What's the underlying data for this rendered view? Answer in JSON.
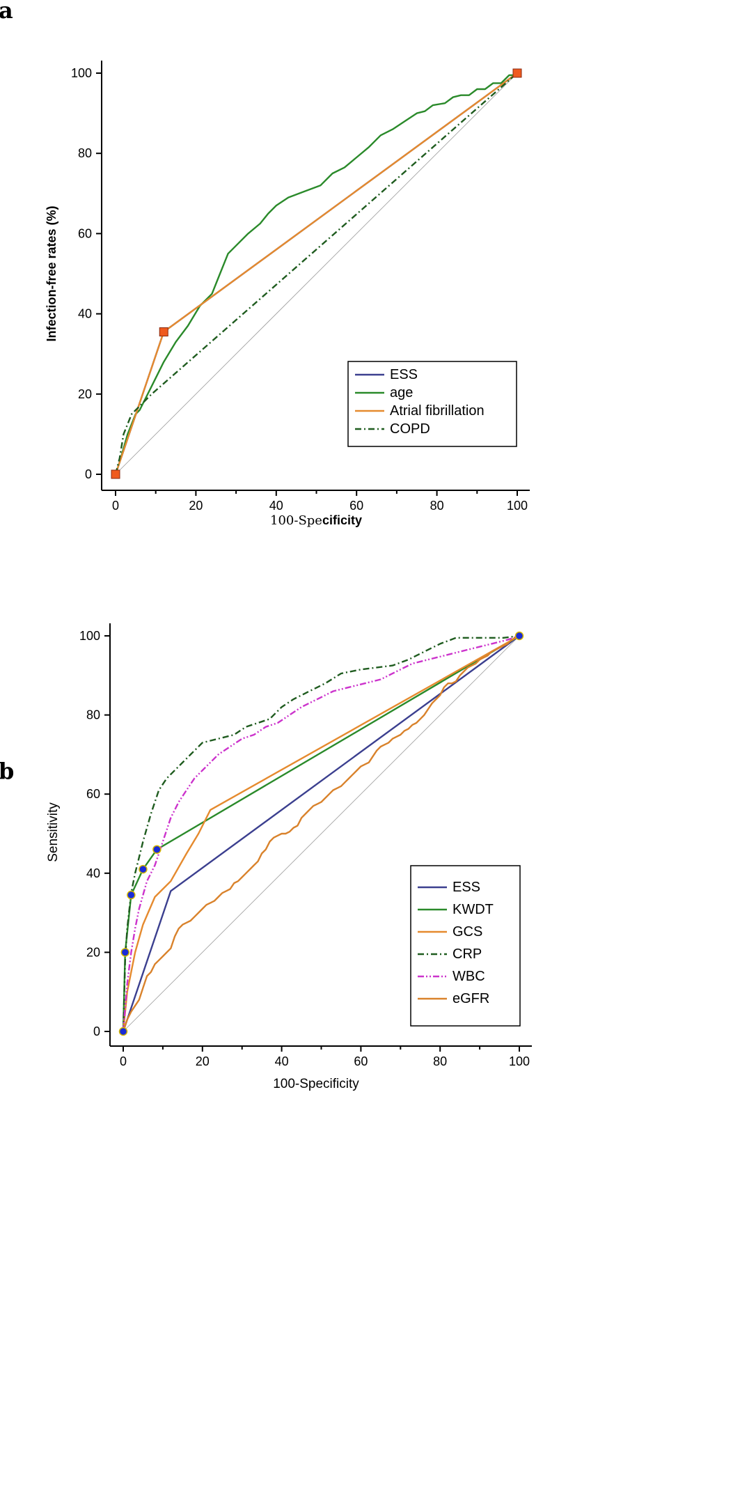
{
  "figure": {
    "panels": [
      "a",
      "b"
    ]
  },
  "chart_data": [
    {
      "panel": "a",
      "type": "line",
      "title": "",
      "xlabel_parts": [
        "100-Spe",
        "cificity"
      ],
      "ylabel": "Infection-free rates (%)",
      "xlim": [
        0,
        100
      ],
      "ylim": [
        0,
        100
      ],
      "xticks": [
        0,
        20,
        40,
        60,
        80,
        100
      ],
      "yticks": [
        0,
        20,
        40,
        60,
        80,
        100
      ],
      "legend_position": "bottom-right",
      "reference_line": "diagonal",
      "series": [
        {
          "name": "ESS",
          "color": "#3b3f8f",
          "dash": "solid",
          "points": [
            [
              0,
              0
            ],
            [
              12,
              35.5
            ],
            [
              100,
              100
            ]
          ],
          "markers": [
            [
              0,
              0
            ],
            [
              12,
              35.5
            ],
            [
              100,
              100
            ]
          ],
          "marker": "square",
          "marker_color": "#ef5a1e"
        },
        {
          "name": "age",
          "color": "#2a8a2a",
          "dash": "solid",
          "points": [
            [
              0,
              0
            ],
            [
              1,
              3
            ],
            [
              3,
              10
            ],
            [
              5,
              15
            ],
            [
              6,
              16
            ],
            [
              8,
              20
            ],
            [
              10,
              24
            ],
            [
              12,
              28
            ],
            [
              15,
              33
            ],
            [
              18,
              37
            ],
            [
              21,
              42
            ],
            [
              24,
              45
            ],
            [
              26,
              50
            ],
            [
              28,
              55
            ],
            [
              30,
              57
            ],
            [
              33,
              60
            ],
            [
              36,
              62.5
            ],
            [
              38,
              65
            ],
            [
              40,
              67
            ],
            [
              43,
              69
            ],
            [
              47,
              70.5
            ],
            [
              51,
              72
            ],
            [
              54,
              75
            ],
            [
              57,
              76.5
            ],
            [
              60,
              79
            ],
            [
              63,
              81.5
            ],
            [
              66,
              84.5
            ],
            [
              69,
              86
            ],
            [
              72,
              88
            ],
            [
              75,
              90
            ],
            [
              77,
              90.5
            ],
            [
              79,
              92
            ],
            [
              82,
              92.5
            ],
            [
              84,
              94
            ],
            [
              86,
              94.5
            ],
            [
              88,
              94.5
            ],
            [
              90,
              96
            ],
            [
              92,
              96
            ],
            [
              94,
              97.5
            ],
            [
              96,
              97.5
            ],
            [
              97,
              98.5
            ],
            [
              98,
              99.5
            ],
            [
              99,
              99.5
            ],
            [
              100,
              100
            ]
          ]
        },
        {
          "name": "Atrial fibrillation",
          "color": "#e58a2e",
          "dash": "solid",
          "points": [
            [
              0,
              0
            ],
            [
              12,
              35.5
            ],
            [
              100,
              100
            ]
          ]
        },
        {
          "name": "COPD",
          "color": "#1f5c1f",
          "dash": "dashdot",
          "points": [
            [
              0,
              0
            ],
            [
              1,
              4
            ],
            [
              2,
              10
            ],
            [
              4,
              15
            ],
            [
              6,
              17
            ],
            [
              9,
              20
            ],
            [
              100,
              100
            ]
          ]
        }
      ]
    },
    {
      "panel": "b",
      "type": "line",
      "title": "",
      "xlabel": "100-Specificity",
      "ylabel": "Sensitivity",
      "xlim": [
        0,
        100
      ],
      "ylim": [
        0,
        100
      ],
      "xticks": [
        0,
        20,
        40,
        60,
        80,
        100
      ],
      "yticks": [
        0,
        20,
        40,
        60,
        80,
        100
      ],
      "legend_position": "bottom-right",
      "reference_line": "diagonal",
      "series": [
        {
          "name": "ESS",
          "color": "#3b3f8f",
          "dash": "solid",
          "points": [
            [
              0,
              0
            ],
            [
              12,
              35.5
            ],
            [
              100,
              100
            ]
          ]
        },
        {
          "name": "KWDT",
          "color": "#2a8a2a",
          "dash": "solid",
          "points": [
            [
              0,
              0
            ],
            [
              0.5,
              20
            ],
            [
              2,
              34.5
            ],
            [
              5,
              41
            ],
            [
              8.5,
              46
            ],
            [
              100,
              100
            ]
          ],
          "markers": [
            [
              0,
              0
            ],
            [
              0.5,
              20
            ],
            [
              2,
              34.5
            ],
            [
              5,
              41
            ],
            [
              8.5,
              46
            ],
            [
              100,
              100
            ]
          ],
          "marker": "circle",
          "marker_color": "#1a2bd6"
        },
        {
          "name": "GCS",
          "color": "#e58a2e",
          "dash": "solid",
          "points": [
            [
              0,
              0
            ],
            [
              1,
              10
            ],
            [
              3,
              20
            ],
            [
              5,
              27
            ],
            [
              8,
              34
            ],
            [
              12,
              38
            ],
            [
              16,
              45
            ],
            [
              19,
              50
            ],
            [
              22,
              56
            ],
            [
              100,
              100
            ]
          ]
        },
        {
          "name": "CRP",
          "color": "#1f5c1f",
          "dash": "dashdot",
          "points": [
            [
              0,
              0
            ],
            [
              0.5,
              18
            ],
            [
              1,
              26
            ],
            [
              2,
              35
            ],
            [
              3,
              40
            ],
            [
              4,
              44
            ],
            [
              5,
              48
            ],
            [
              7,
              55
            ],
            [
              9,
              61
            ],
            [
              11,
              64
            ],
            [
              14,
              67
            ],
            [
              17,
              70
            ],
            [
              20,
              73
            ],
            [
              24,
              74
            ],
            [
              28,
              75
            ],
            [
              31,
              77
            ],
            [
              34,
              78
            ],
            [
              37,
              79
            ],
            [
              40,
              82
            ],
            [
              43,
              84
            ],
            [
              47,
              86
            ],
            [
              51,
              88
            ],
            [
              55,
              90.5
            ],
            [
              60,
              91.5
            ],
            [
              64,
              92
            ],
            [
              68,
              92.5
            ],
            [
              72,
              94
            ],
            [
              76,
              96
            ],
            [
              80,
              98
            ],
            [
              84,
              99.5
            ],
            [
              90,
              99.5
            ],
            [
              96,
              99.5
            ],
            [
              100,
              100
            ]
          ]
        },
        {
          "name": "WBC",
          "color": "#cc33cc",
          "dash": "dashdotdot",
          "points": [
            [
              0,
              0
            ],
            [
              1,
              12
            ],
            [
              2,
              20
            ],
            [
              3,
              26
            ],
            [
              4,
              31
            ],
            [
              6,
              38
            ],
            [
              8,
              42
            ],
            [
              10,
              48
            ],
            [
              12,
              54
            ],
            [
              14,
              58
            ],
            [
              16,
              61
            ],
            [
              18,
              64
            ],
            [
              21,
              67
            ],
            [
              24,
              70
            ],
            [
              27,
              72
            ],
            [
              30,
              74
            ],
            [
              33,
              75
            ],
            [
              36,
              77
            ],
            [
              39,
              78
            ],
            [
              42,
              80
            ],
            [
              45,
              82
            ],
            [
              49,
              84
            ],
            [
              53,
              86
            ],
            [
              57,
              87
            ],
            [
              61,
              88
            ],
            [
              65,
              89
            ],
            [
              69,
              91
            ],
            [
              73,
              93
            ],
            [
              77,
              94
            ],
            [
              81,
              95
            ],
            [
              85,
              96
            ],
            [
              89,
              97
            ],
            [
              93,
              98
            ],
            [
              97,
              99
            ],
            [
              100,
              100
            ]
          ]
        },
        {
          "name": "eGFR",
          "color": "#d9822b",
          "dash": "solid",
          "points": [
            [
              0,
              0
            ],
            [
              1,
              3
            ],
            [
              2,
              5
            ],
            [
              4,
              8
            ],
            [
              5,
              11
            ],
            [
              6,
              14
            ],
            [
              7,
              15
            ],
            [
              8,
              17
            ],
            [
              9,
              18
            ],
            [
              10,
              19
            ],
            [
              11,
              20
            ],
            [
              12,
              21
            ],
            [
              13,
              24
            ],
            [
              14,
              26
            ],
            [
              15,
              27
            ],
            [
              16,
              27.5
            ],
            [
              17,
              28
            ],
            [
              18,
              29
            ],
            [
              19,
              30
            ],
            [
              20,
              31
            ],
            [
              21,
              32
            ],
            [
              22,
              32.5
            ],
            [
              23,
              33
            ],
            [
              24,
              34
            ],
            [
              25,
              35
            ],
            [
              26,
              35.5
            ],
            [
              27,
              36
            ],
            [
              28,
              37.5
            ],
            [
              29,
              38
            ],
            [
              30,
              39
            ],
            [
              31,
              40
            ],
            [
              32,
              41
            ],
            [
              33,
              42
            ],
            [
              34,
              43
            ],
            [
              35,
              45
            ],
            [
              36,
              46
            ],
            [
              37,
              48
            ],
            [
              38,
              49
            ],
            [
              39,
              49.5
            ],
            [
              40,
              50
            ],
            [
              41,
              50
            ],
            [
              42,
              50.5
            ],
            [
              43,
              51.5
            ],
            [
              44,
              52
            ],
            [
              45,
              54
            ],
            [
              46,
              55
            ],
            [
              47,
              56
            ],
            [
              48,
              57
            ],
            [
              49,
              57.5
            ],
            [
              50,
              58
            ],
            [
              51,
              59
            ],
            [
              52,
              60
            ],
            [
              53,
              61
            ],
            [
              54,
              61.5
            ],
            [
              55,
              62
            ],
            [
              56,
              63
            ],
            [
              57,
              64
            ],
            [
              58,
              65
            ],
            [
              59,
              66
            ],
            [
              60,
              67
            ],
            [
              61,
              67.5
            ],
            [
              62,
              68
            ],
            [
              63,
              69.5
            ],
            [
              64,
              71
            ],
            [
              65,
              72
            ],
            [
              66,
              72.5
            ],
            [
              67,
              73
            ],
            [
              68,
              74
            ],
            [
              69,
              74.5
            ],
            [
              70,
              75
            ],
            [
              71,
              76
            ],
            [
              72,
              76.5
            ],
            [
              73,
              77.5
            ],
            [
              74,
              78
            ],
            [
              75,
              79
            ],
            [
              76,
              80
            ],
            [
              77,
              81.5
            ],
            [
              78,
              83
            ],
            [
              79,
              84
            ],
            [
              80,
              85
            ],
            [
              81,
              87
            ],
            [
              82,
              88
            ],
            [
              83,
              88
            ],
            [
              84,
              88.5
            ],
            [
              85,
              90
            ],
            [
              86,
              91
            ],
            [
              87,
              92
            ],
            [
              88,
              92.5
            ],
            [
              89,
              93
            ],
            [
              90,
              94
            ],
            [
              91,
              94.5
            ],
            [
              92,
              95
            ],
            [
              93,
              96
            ],
            [
              94,
              96.5
            ],
            [
              95,
              97
            ],
            [
              96,
              97.5
            ],
            [
              97,
              98
            ],
            [
              98,
              99
            ],
            [
              99,
              99.5
            ],
            [
              100,
              100
            ]
          ]
        }
      ]
    }
  ]
}
